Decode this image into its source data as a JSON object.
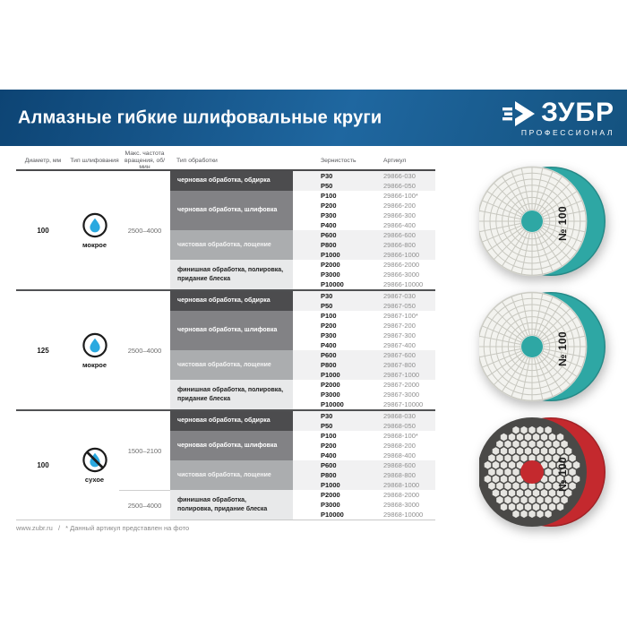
{
  "banner": {
    "title": "Алмазные гибкие шлифовальные круги",
    "brand": "ЗУБР",
    "brand_subtitle": "ПРОФЕССИОНАЛ",
    "bg_color": "#1f67a0"
  },
  "table": {
    "headers": [
      "Диаметр, мм",
      "Тип шлифования",
      "Макс. частота\nвращения, об/мин",
      "Тип обработки",
      "Зернистость",
      "Артикул"
    ],
    "tone_colors": {
      "dark": "#4c4c4e",
      "medium": "#828285",
      "light": "#abadaf",
      "pale": "#e8e9ea"
    },
    "row_shade_color": "#f1f1f2",
    "groups": [
      {
        "diameter": "100",
        "grinding": "мокрое",
        "icon": "wet-droplet-icon",
        "frequencies": [
          {
            "value": "2500–4000",
            "span_subgroups": 4
          }
        ],
        "subgroups": [
          {
            "processing": "черновая обработка, обдирка",
            "tone": "dark",
            "rows": [
              {
                "grit": "P30",
                "sku": "29866-030"
              },
              {
                "grit": "P50",
                "sku": "29866-050"
              }
            ]
          },
          {
            "processing": "черновая обработка, шлифовка",
            "tone": "medium",
            "rows": [
              {
                "grit": "P100",
                "sku": "29866-100*"
              },
              {
                "grit": "P200",
                "sku": "29866-200"
              },
              {
                "grit": "P300",
                "sku": "29866-300"
              },
              {
                "grit": "P400",
                "sku": "29866-400"
              }
            ]
          },
          {
            "processing": "чистовая обработка, лощение",
            "tone": "light",
            "rows": [
              {
                "grit": "P600",
                "sku": "29866-600"
              },
              {
                "grit": "P800",
                "sku": "29866-800"
              },
              {
                "grit": "P1000",
                "sku": "29866-1000"
              }
            ]
          },
          {
            "processing": "финишная обработка, полировка,\nпридание блеска",
            "tone": "pale",
            "rows": [
              {
                "grit": "P2000",
                "sku": "29866-2000"
              },
              {
                "grit": "P3000",
                "sku": "29866-3000"
              },
              {
                "grit": "P10000",
                "sku": "29866-10000"
              }
            ]
          }
        ]
      },
      {
        "diameter": "125",
        "grinding": "мокрое",
        "icon": "wet-droplet-icon",
        "frequencies": [
          {
            "value": "2500–4000",
            "span_subgroups": 4
          }
        ],
        "subgroups": [
          {
            "processing": "черновая обработка, обдирка",
            "tone": "dark",
            "rows": [
              {
                "grit": "P30",
                "sku": "29867-030"
              },
              {
                "grit": "P50",
                "sku": "29867-050"
              }
            ]
          },
          {
            "processing": "черновая обработка, шлифовка",
            "tone": "medium",
            "rows": [
              {
                "grit": "P100",
                "sku": "29867-100*"
              },
              {
                "grit": "P200",
                "sku": "29867-200"
              },
              {
                "grit": "P300",
                "sku": "29867-300"
              },
              {
                "grit": "P400",
                "sku": "29867-400"
              }
            ]
          },
          {
            "processing": "чистовая обработка, лощение",
            "tone": "light",
            "rows": [
              {
                "grit": "P600",
                "sku": "29867-600"
              },
              {
                "grit": "P800",
                "sku": "29867-800"
              },
              {
                "grit": "P1000",
                "sku": "29867-1000"
              }
            ]
          },
          {
            "processing": "финишная обработка, полировка,\nпридание блеска",
            "tone": "pale",
            "rows": [
              {
                "grit": "P2000",
                "sku": "29867-2000"
              },
              {
                "grit": "P3000",
                "sku": "29867-3000"
              },
              {
                "grit": "P10000",
                "sku": "29867-10000"
              }
            ]
          }
        ]
      },
      {
        "diameter": "100",
        "grinding": "сухое",
        "icon": "no-water-icon",
        "frequencies": [
          {
            "value": "1500–2100",
            "span_subgroups": 3
          },
          {
            "value": "2500–4000",
            "span_subgroups": 1
          }
        ],
        "subgroups": [
          {
            "processing": "черновая обработка, обдирка",
            "tone": "dark",
            "rows": [
              {
                "grit": "P30",
                "sku": "29868-030"
              },
              {
                "grit": "P50",
                "sku": "29868-050"
              }
            ]
          },
          {
            "processing": "черновая обработка, шлифовка",
            "tone": "medium",
            "rows": [
              {
                "grit": "P100",
                "sku": "29868-100*"
              },
              {
                "grit": "P200",
                "sku": "29868-200"
              },
              {
                "grit": "P400",
                "sku": "29868-400"
              }
            ]
          },
          {
            "processing": "чистовая обработка, лощение",
            "tone": "light",
            "rows": [
              {
                "grit": "P600",
                "sku": "29868-600"
              },
              {
                "grit": "P800",
                "sku": "29868-800"
              },
              {
                "grit": "P1000",
                "sku": "29868-1000"
              }
            ]
          },
          {
            "processing": "финишная обработка,\nполировка, придание блеска",
            "tone": "pale",
            "rows": [
              {
                "grit": "P2000",
                "sku": "29868-2000"
              },
              {
                "grit": "P3000",
                "sku": "29868-3000"
              },
              {
                "grit": "P10000",
                "sku": "29868-10000"
              }
            ]
          }
        ]
      }
    ]
  },
  "products": [
    {
      "label": "№ 100",
      "style": "wet",
      "backing_color": "#2ea7a4"
    },
    {
      "label": "№ 100",
      "style": "wet",
      "backing_color": "#2ea7a4"
    },
    {
      "label": "№ 100",
      "style": "dry",
      "backing_color": "#c4292e"
    }
  ],
  "footer": {
    "site": "www.zubr.ru",
    "separator": "/",
    "note": "* Данный артикул представлен на фото"
  }
}
